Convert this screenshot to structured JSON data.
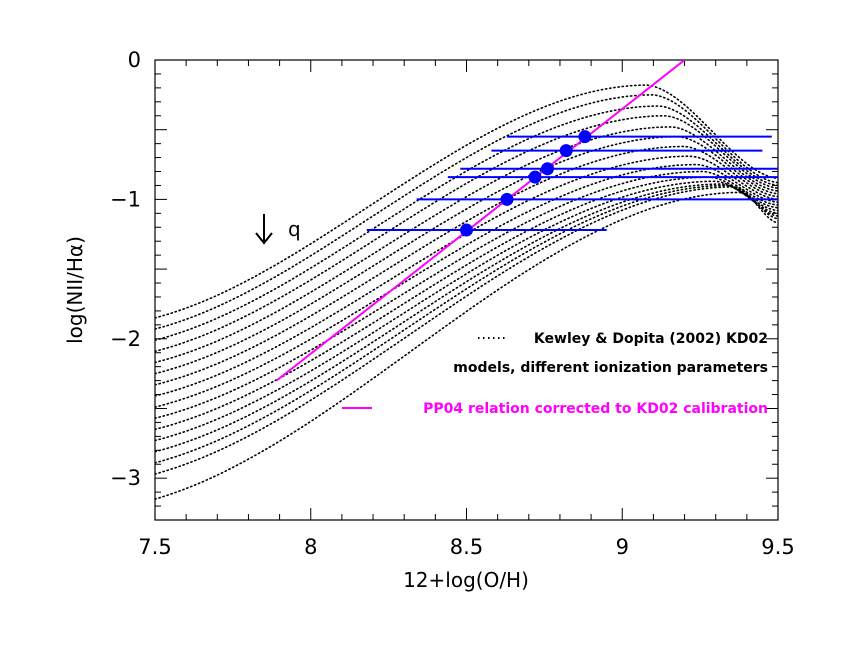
{
  "chart_data": {
    "type": "scatter",
    "xlabel": "12+log(O/H)",
    "ylabel": "log(NII/Hα)",
    "xlim": [
      7.5,
      9.5
    ],
    "ylim": [
      -3.3,
      0
    ],
    "x_ticks": [
      {
        "value": 7.5,
        "label": "7.5"
      },
      {
        "value": 8,
        "label": "8"
      },
      {
        "value": 8.5,
        "label": "8.5"
      },
      {
        "value": 9,
        "label": "9"
      },
      {
        "value": 9.5,
        "label": "9.5"
      }
    ],
    "y_ticks": [
      {
        "value": 0,
        "label": "0"
      },
      {
        "value": -1,
        "label": "−1"
      },
      {
        "value": -2,
        "label": "−2"
      },
      {
        "value": -3,
        "label": "−3"
      }
    ],
    "grid": false,
    "annotations": [
      {
        "text": "q",
        "arrow": "down",
        "x": 7.85,
        "y": -1.22
      }
    ],
    "legend": {
      "placement": "bottom-right",
      "entries": [
        {
          "style": "dotted",
          "color": "#000000",
          "text": "Kewley & Dopita (2002) KD02"
        },
        {
          "style": "none",
          "color": "#000000",
          "text": "models, different ionization parameters"
        },
        {
          "style": "solid",
          "color": "#ff00ff",
          "text": "PP04 relation corrected to KD02 calibration"
        }
      ]
    },
    "series": [
      {
        "kind": "model_grid",
        "style": "dotted",
        "color": "#000000",
        "count": 16,
        "y_at_x_7_5": [
          -1.85,
          -1.93,
          -2.01,
          -2.09,
          -2.17,
          -2.25,
          -2.33,
          -2.41,
          -2.49,
          -2.57,
          -2.65,
          -2.73,
          -2.81,
          -2.89,
          -2.97,
          -3.15
        ],
        "peak_x": [
          9.08,
          9.1,
          9.12,
          9.14,
          9.16,
          9.18,
          9.2,
          9.22,
          9.24,
          9.26,
          9.28,
          9.3,
          9.32,
          9.34,
          9.36,
          9.38
        ],
        "peak_y": [
          -0.18,
          -0.25,
          -0.33,
          -0.4,
          -0.48,
          -0.55,
          -0.62,
          -0.69,
          -0.75,
          -0.8,
          -0.84,
          -0.87,
          -0.89,
          -0.9,
          -0.91,
          -0.95
        ],
        "y_at_x_9_5": [
          -0.85,
          -0.88,
          -0.9,
          -0.92,
          -0.94,
          -0.96,
          -0.98,
          -1.0,
          -1.02,
          -1.04,
          -1.06,
          -1.08,
          -1.1,
          -1.12,
          -1.14,
          -1.17
        ]
      },
      {
        "kind": "line",
        "style": "solid",
        "color": "#ff00ff",
        "x": [
          7.89,
          9.2
        ],
        "y": [
          -2.3,
          0.0
        ]
      },
      {
        "kind": "points_with_xerr",
        "color": "#0000ff",
        "points": [
          {
            "x": 8.5,
            "y": -1.22,
            "xmin": 8.18,
            "xmax": 8.95
          },
          {
            "x": 8.63,
            "y": -1.0,
            "xmin": 8.34,
            "xmax": 9.5
          },
          {
            "x": 8.72,
            "y": -0.84,
            "xmin": 8.44,
            "xmax": 9.5
          },
          {
            "x": 8.76,
            "y": -0.78,
            "xmin": 8.48,
            "xmax": 9.5
          },
          {
            "x": 8.82,
            "y": -0.65,
            "xmin": 8.58,
            "xmax": 9.45
          },
          {
            "x": 8.88,
            "y": -0.55,
            "xmin": 8.63,
            "xmax": 9.48
          }
        ]
      }
    ]
  }
}
